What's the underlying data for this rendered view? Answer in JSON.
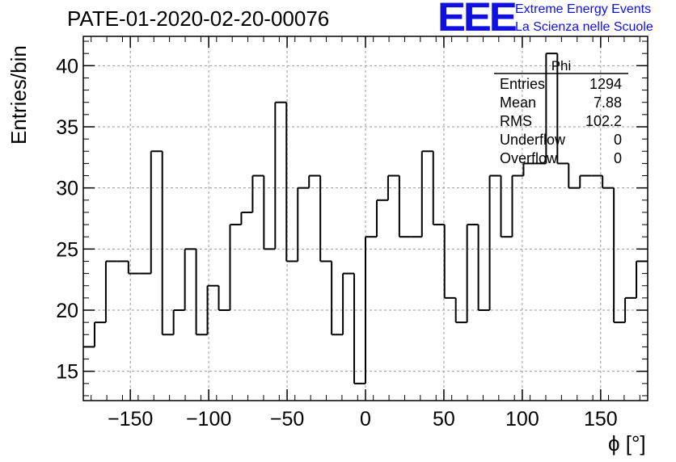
{
  "header": {
    "title": "PATE-01-2020-02-20-00076",
    "logo_text": "EEE",
    "org_line1": "Extreme Energy Events",
    "org_line2": "La Scienza nelle Scuole"
  },
  "stats": {
    "name": "Phi",
    "rows": [
      {
        "label": "Entries",
        "value": "1294"
      },
      {
        "label": "Mean",
        "value": "7.88"
      },
      {
        "label": "RMS",
        "value": "102.2"
      },
      {
        "label": "Underflow",
        "value": "0"
      },
      {
        "label": "Overflow",
        "value": "0"
      }
    ]
  },
  "colors": {
    "logo": "#1010e0",
    "line": "#000000",
    "grid": "#9a9a9a"
  },
  "chart_data": {
    "type": "histogram",
    "ylabel": "Entries/bin",
    "xlabel": "ϕ [°]",
    "xlim": [
      -180,
      180
    ],
    "ylim": [
      12.6,
      42.4
    ],
    "xticks": [
      -150,
      -100,
      -50,
      0,
      50,
      100,
      150
    ],
    "xtick_labels": [
      "−150",
      "−100",
      "−50",
      "0",
      "50",
      "100",
      "150"
    ],
    "yticks": [
      15,
      20,
      25,
      30,
      35,
      40
    ],
    "ytick_labels": [
      "15",
      "20",
      "25",
      "30",
      "35",
      "40"
    ],
    "grid": true,
    "bin_edges_start": -180,
    "bin_width": 7.2,
    "counts": [
      17,
      19,
      24,
      24,
      23,
      23,
      33,
      18,
      20,
      25,
      18,
      22,
      20,
      27,
      28,
      31,
      25,
      37,
      24,
      30,
      31,
      24,
      18,
      23,
      14,
      26,
      29,
      31,
      26,
      26,
      33,
      27,
      21,
      19,
      27,
      20,
      31,
      26,
      31,
      32,
      32,
      41,
      32,
      30,
      31,
      31,
      30,
      19,
      21,
      24
    ]
  }
}
